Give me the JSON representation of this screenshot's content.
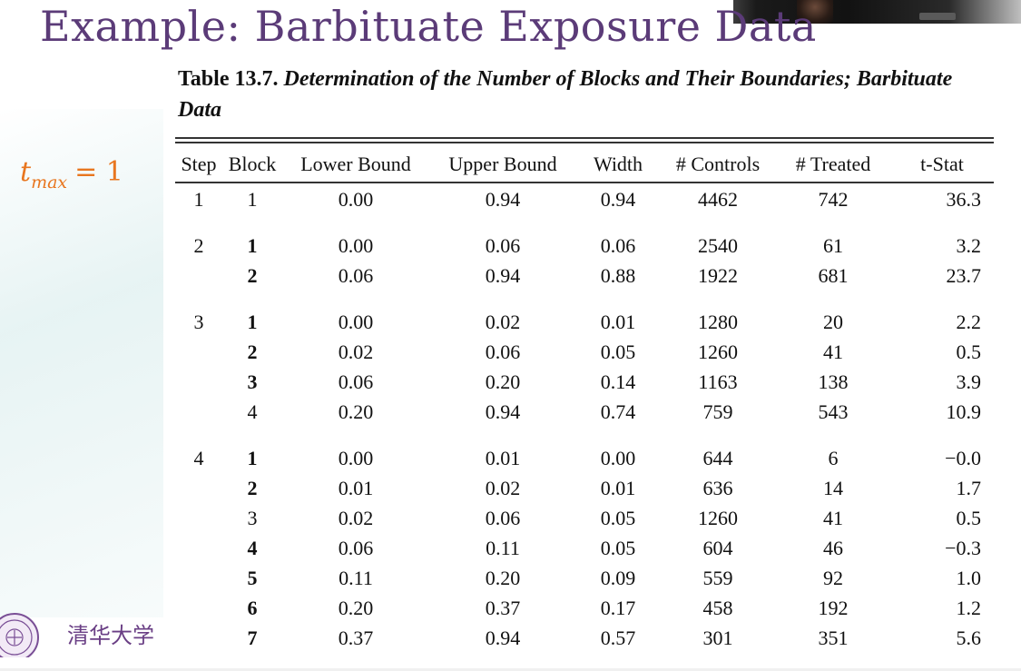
{
  "slide": {
    "title": "Example: Barbituate Exposure Data",
    "formula": {
      "main": "t",
      "subscript": "max",
      "rest": "= 1"
    },
    "university": "清华大学",
    "logo_text": "清华大学"
  },
  "caption": {
    "label": "Table 13.7.",
    "text": "Determination of the Number of Blocks and Their Boundaries; Barbituate Data"
  },
  "table": {
    "headers": [
      "Step",
      "Block",
      "Lower Bound",
      "Upper Bound",
      "Width",
      "# Controls",
      "# Treated",
      "t-Stat"
    ],
    "rows": [
      {
        "step": "1",
        "block": "1",
        "lower": "0.00",
        "upper": "0.94",
        "width": "0.94",
        "controls": "4462",
        "treated": "742",
        "tstat": "36.3"
      },
      {
        "step": "2",
        "block": "1",
        "lower": "0.00",
        "upper": "0.06",
        "width": "0.06",
        "controls": "2540",
        "treated": "61",
        "tstat": "3.2"
      },
      {
        "step": "",
        "block": "2",
        "lower": "0.06",
        "upper": "0.94",
        "width": "0.88",
        "controls": "1922",
        "treated": "681",
        "tstat": "23.7"
      },
      {
        "step": "3",
        "block": "1",
        "lower": "0.00",
        "upper": "0.02",
        "width": "0.01",
        "controls": "1280",
        "treated": "20",
        "tstat": "2.2"
      },
      {
        "step": "",
        "block": "2",
        "lower": "0.02",
        "upper": "0.06",
        "width": "0.05",
        "controls": "1260",
        "treated": "41",
        "tstat": "0.5"
      },
      {
        "step": "",
        "block": "3",
        "lower": "0.06",
        "upper": "0.20",
        "width": "0.14",
        "controls": "1163",
        "treated": "138",
        "tstat": "3.9"
      },
      {
        "step": "",
        "block": "4",
        "lower": "0.20",
        "upper": "0.94",
        "width": "0.74",
        "controls": "759",
        "treated": "543",
        "tstat": "10.9"
      },
      {
        "step": "4",
        "block": "1",
        "lower": "0.00",
        "upper": "0.01",
        "width": "0.00",
        "controls": "644",
        "treated": "6",
        "tstat": "−0.0"
      },
      {
        "step": "",
        "block": "2",
        "lower": "0.01",
        "upper": "0.02",
        "width": "0.01",
        "controls": "636",
        "treated": "14",
        "tstat": "1.7"
      },
      {
        "step": "",
        "block": "3",
        "lower": "0.02",
        "upper": "0.06",
        "width": "0.05",
        "controls": "1260",
        "treated": "41",
        "tstat": "0.5"
      },
      {
        "step": "",
        "block": "4",
        "lower": "0.06",
        "upper": "0.11",
        "width": "0.05",
        "controls": "604",
        "treated": "46",
        "tstat": "−0.3"
      },
      {
        "step": "",
        "block": "5",
        "lower": "0.11",
        "upper": "0.20",
        "width": "0.09",
        "controls": "559",
        "treated": "92",
        "tstat": "1.0"
      },
      {
        "step": "",
        "block": "6",
        "lower": "0.20",
        "upper": "0.37",
        "width": "0.17",
        "controls": "458",
        "treated": "192",
        "tstat": "1.2"
      },
      {
        "step": "",
        "block": "7",
        "lower": "0.37",
        "upper": "0.94",
        "width": "0.57",
        "controls": "301",
        "treated": "351",
        "tstat": "5.6"
      }
    ]
  }
}
